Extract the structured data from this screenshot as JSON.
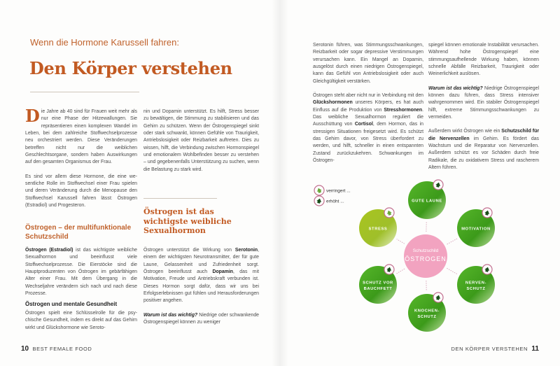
{
  "left_page": {
    "kicker": "Wenn die Hormone Karussell fahren:",
    "title": "Den Körper verstehen",
    "col1": {
      "drop_cap": "D",
      "p1": "ie Jahre ab 40 sind für Frauen weit mehr als nur eine Phase der Hitzewallungen. Sie repräsentieren einen komplexen Wandel im Leben, bei dem zahlreiche Stoffwechsel­prozesse neu orchestriert werden. Diese Ver­änderungen betreffen nicht nur die weibli­chen Geschlechtsorgane, sondern haben Auswirkungen auf den gesamten Organis­mus der Frau.",
      "p2": "Es sind vor allem diese Hormone, die eine we­sentliche Rolle im Stoffwechsel einer Frau spielen und deren Veränderung durch die Me­nopause den Stoffwechsel Karussell fahren lässt: Östrogen (Estradiol) und Progesteron.",
      "heading": "Östrogen – der multifunktionale Schutzschild",
      "p3": [
        {
          "t": "Östrogen (Estradiol)",
          "b": true
        },
        {
          "t": " ist das wichtigste weib­liche Sexualhormon und beeinflusst viele Stoffwechselprozesse. Die Eierstöcke sind die Hauptproduzenten von Östrogen im gebär­fähigen Alter einer Frau. Mit dem Übergang in die Wechseljahre verändern sich nach und nach diese Prozesse."
        }
      ],
      "subheading": "Östrogen und mentale Gesundheit",
      "p4": "Östrogen spielt eine Schlüsselrolle für die psy­chische Gesundheit, indem es direkt auf das Gehirn wirkt und Glückshormone wie Seroto-"
    },
    "col2": {
      "p1": "nin und Dopamin unterstützt. Es hilft, Stress besser zu bewältigen, die Stimmung zu stabi­lisieren und das Gehirn zu schützen. Wenn der Östrogenspiegel sinkt oder stark schwankt, können Gefühle von Traurigkeit, Antriebslo­sigkeit oder Reizbarkeit auftreten. Dies zu wissen, hilft, die Verbindung zwischen Hor­monspiegel und emotionalem Wohlbefinden besser zu verstehen – und gegebenenfalls Unterstützung zu suchen, wenn die Belas­tung zu stark wird.",
      "heading": "Östrogen ist das wichtigste weibliche Sexualhormon",
      "p2": [
        {
          "t": "Östrogen unterstützt die Wirkung von "
        },
        {
          "t": "Sero­tonin",
          "b": true
        },
        {
          "t": ", einem der wichtigsten Neurotransmit­ter, der für gute Laune, Gelassenheit und Zu­friedenheit sorgt. Östrogen beeinflusst auch "
        },
        {
          "t": "Dopamin",
          "b": true
        },
        {
          "t": ", das mit Motivation, Freude und Antriebskraft verbunden ist. Dieses Hormon sorgt dafür, dass wir uns bei Erfolgserlebnis­sen gut fühlen und Herausforderungen posi­tiver angehen."
        }
      ],
      "p3": [
        {
          "t": "Warum ist das wichtig?",
          "b": true,
          "i": true
        },
        {
          "t": " Niedrige oder schwan­kende Östrogenspiegel können zu weniger"
        }
      ]
    },
    "footer": {
      "page_number": "10",
      "label": "BEST FEMALE FOOD"
    }
  },
  "right_page": {
    "col3": {
      "p1": "Serotonin führen, was Stimmungsschwan­kungen, Reizbarkeit oder sogar depressive Verstimmungen verursachen kann. Ein Man­gel an Dopamin, ausgelöst durch einen nied­rigen Östrogenspiegel, kann das Gefühl von Antriebslosigkeit oder auch Gleichgültigkeit verstärken.",
      "p2": [
        {
          "t": "Östrogen steht aber nicht nur in Verbindung mit den "
        },
        {
          "t": "Glückshormonen",
          "b": true
        },
        {
          "t": " unseres Körpers, es hat auch Einfluss auf die Produktion von "
        },
        {
          "t": "Stresshormonen",
          "b": true
        },
        {
          "t": ". Das weibliche Sexualhor­mon reguliert die Ausschüttung von "
        },
        {
          "t": "Cortisol",
          "b": true
        },
        {
          "t": ", dem Hormon, das in stressigen Situationen freigesetzt wird. Es schützt das Gehirn davor, von Stress überfordert zu werden, und hilft, schneller in einen entspannten Zustand zu­rückzukehren. Schwankungen im Östrogen-"
        }
      ]
    },
    "col4": {
      "p1": "spiegel können emotionale Instabilität verur­sachen. Während hohe Östrogenspiegel eine stimmungsaufhellende Wirkung haben, kön­nen schnelle Abfälle Reizbarkeit, Traurigkeit oder Weinerlichkeit auslösen.",
      "p2": [
        {
          "t": "Warum ist das wichtig?",
          "b": true,
          "i": true
        },
        {
          "t": " Niedrige Östrogen­spiegel können dazu führen, dass Stress in­tensiver wahrgenommen wird. Ein stabiler Östrogenspiegel hilft, extreme Stimmungs­schwankungen zu vermeiden."
        }
      ],
      "p3": [
        {
          "t": "Außerdem wirkt Östrogen wie ein "
        },
        {
          "t": "Schutz­schild für die Nervenzellen",
          "b": true
        },
        {
          "t": " im Gehirn. Es för­dert das Wachstum und die Reparatur von Nervenzellen. Außerdem schützt es vor Schä­den durch freie Radikale, die zu oxidativem Stress und rascherem Altern führen."
        }
      ]
    },
    "diagram": {
      "legend": [
        {
          "label": "verringert ...",
          "icon": "arrow-down-light-icon",
          "color": "#7cb342"
        },
        {
          "label": "erhöht ...",
          "icon": "arrow-up-dark-icon",
          "color": "#1b4d1b"
        }
      ],
      "center": {
        "line1": "Schutzschild",
        "line2": "ÖSTROGEN",
        "color": "#f2a3c0"
      },
      "nodes": [
        {
          "lines": [
            "GUTE LAUNE"
          ],
          "effect": "erhöht"
        },
        {
          "lines": [
            "MOTIVATION"
          ],
          "effect": "erhöht"
        },
        {
          "lines": [
            "NERVEN-",
            "SCHUTZ"
          ],
          "effect": "erhöht"
        },
        {
          "lines": [
            "KNOCHEN-",
            "SCHUTZ"
          ],
          "effect": "erhöht"
        },
        {
          "lines": [
            "SCHUTZ VOR",
            "BAUCHFETT"
          ],
          "effect": "erhöht"
        },
        {
          "lines": [
            "STRESS"
          ],
          "effect": "verringert"
        }
      ],
      "colors": {
        "green": "#3f9e1c",
        "stress": "#a6c22a",
        "badge_border": "#c2708f"
      }
    },
    "footer": {
      "label": "DEN KÖRPER VERSTEHEN",
      "page_number": "11"
    }
  }
}
